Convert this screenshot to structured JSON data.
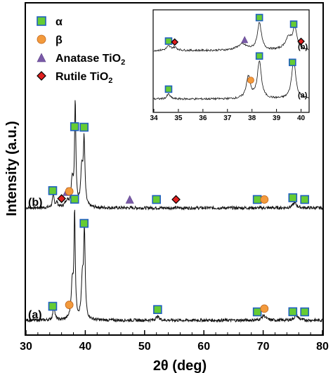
{
  "chart_data": [
    {
      "type": "line",
      "xlabel": "2θ (deg)",
      "ylabel": "Intensity (a.u.)",
      "xlim": [
        30,
        80
      ],
      "xticks": [
        "30",
        "40",
        "50",
        "60",
        "70",
        "80"
      ],
      "legend_placement": "top-left",
      "legend": [
        {
          "label": "α",
          "marker": "square",
          "color": "#66cc33",
          "edge": "#1f5fbf"
        },
        {
          "label": "β",
          "marker": "circle",
          "color": "#f39a3c",
          "edge": "#c0651c"
        },
        {
          "label": "Anatase TiO",
          "sub": "2",
          "marker": "triangle",
          "color": "#7a5aa8",
          "edge": "#5c4187"
        },
        {
          "label": "Rutile TiO",
          "sub": "2",
          "marker": "diamond",
          "color": "#e01f1f",
          "edge": "#000000"
        }
      ],
      "series": [
        {
          "name": "(b)",
          "baseline": 0.2,
          "peaks": [
            {
              "x": 34.6,
              "h": 0.1,
              "w": 0.18
            },
            {
              "x": 35.2,
              "h": 0.04,
              "w": 0.2
            },
            {
              "x": 36.9,
              "h": 0.05,
              "w": 0.35
            },
            {
              "x": 37.8,
              "h": 0.22,
              "w": 0.22
            },
            {
              "x": 38.3,
              "h": 0.85,
              "w": 0.13
            },
            {
              "x": 39.4,
              "h": 0.3,
              "w": 0.22
            },
            {
              "x": 39.8,
              "h": 0.52,
              "w": 0.16
            },
            {
              "x": 75.3,
              "h": 0.04,
              "w": 0.4
            }
          ],
          "markers": [
            {
              "x": 34.5,
              "type": "square"
            },
            {
              "x": 36.0,
              "type": "diamond"
            },
            {
              "x": 36.9,
              "type": "triangle"
            },
            {
              "x": 37.3,
              "type": "circle"
            },
            {
              "x": 38.2,
              "type": "square"
            },
            {
              "x": 39.8,
              "type": "square"
            },
            {
              "x": 47.5,
              "type": "triangle"
            },
            {
              "x": 52.0,
              "type": "square"
            },
            {
              "x": 55.3,
              "type": "diamond"
            },
            {
              "x": 69.0,
              "type": "square"
            },
            {
              "x": 70.2,
              "type": "circle"
            },
            {
              "x": 75.0,
              "type": "square"
            },
            {
              "x": 77.0,
              "type": "square"
            }
          ],
          "label": "(b)"
        },
        {
          "name": "(a)",
          "baseline": 0.0,
          "peaks": [
            {
              "x": 34.7,
              "h": 0.12,
              "w": 0.18
            },
            {
              "x": 37.8,
              "h": 0.28,
              "w": 0.22
            },
            {
              "x": 38.2,
              "h": 0.85,
              "w": 0.13
            },
            {
              "x": 39.5,
              "h": 0.3,
              "w": 0.2
            },
            {
              "x": 39.85,
              "h": 0.7,
              "w": 0.15
            },
            {
              "x": 52.2,
              "h": 0.03,
              "w": 0.35
            },
            {
              "x": 70.1,
              "h": 0.04,
              "w": 0.4
            },
            {
              "x": 75.6,
              "h": 0.04,
              "w": 0.4
            }
          ],
          "markers": [
            {
              "x": 34.5,
              "type": "square"
            },
            {
              "x": 37.3,
              "type": "circle"
            },
            {
              "x": 38.2,
              "type": "square"
            },
            {
              "x": 39.8,
              "type": "square"
            },
            {
              "x": 52.2,
              "type": "square"
            },
            {
              "x": 69.0,
              "type": "square"
            },
            {
              "x": 70.2,
              "type": "circle"
            },
            {
              "x": 75.0,
              "type": "square"
            },
            {
              "x": 77.0,
              "type": "square"
            }
          ],
          "label": "(a)"
        }
      ]
    },
    {
      "type": "line",
      "inset": true,
      "xlim": [
        34,
        40.3
      ],
      "xticks": [
        "34",
        "35",
        "36",
        "37",
        "38",
        "39",
        "40"
      ],
      "series": [
        {
          "name": "(b)",
          "peaks": [
            {
              "x": 34.6,
              "h": 0.08,
              "w": 0.1
            },
            {
              "x": 34.85,
              "h": 0.06,
              "w": 0.12
            },
            {
              "x": 37.6,
              "h": 0.12,
              "w": 0.25
            },
            {
              "x": 38.3,
              "h": 0.55,
              "w": 0.1
            },
            {
              "x": 39.5,
              "h": 0.25,
              "w": 0.18
            },
            {
              "x": 39.75,
              "h": 0.4,
              "w": 0.1
            }
          ],
          "markers": [
            {
              "x": 34.6,
              "type": "square"
            },
            {
              "x": 34.85,
              "type": "diamond"
            },
            {
              "x": 37.7,
              "type": "triangle"
            },
            {
              "x": 38.3,
              "type": "square"
            },
            {
              "x": 39.7,
              "type": "square"
            },
            {
              "x": 40.0,
              "type": "diamond"
            }
          ],
          "label": "(b)"
        },
        {
          "name": "(a)",
          "peaks": [
            {
              "x": 34.6,
              "h": 0.1,
              "w": 0.08
            },
            {
              "x": 37.85,
              "h": 0.45,
              "w": 0.1
            },
            {
              "x": 38.3,
              "h": 0.75,
              "w": 0.1
            },
            {
              "x": 39.7,
              "h": 0.8,
              "w": 0.1
            }
          ],
          "markers": [
            {
              "x": 34.6,
              "type": "square"
            },
            {
              "x": 37.95,
              "type": "circle"
            },
            {
              "x": 38.3,
              "type": "square"
            },
            {
              "x": 39.65,
              "type": "square"
            }
          ],
          "label": "(a)"
        }
      ]
    }
  ]
}
